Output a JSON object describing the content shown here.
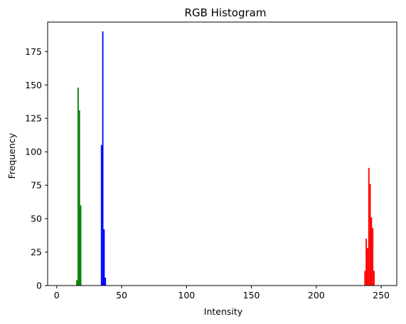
{
  "chart_data": {
    "type": "bar",
    "title": "RGB Histogram",
    "xlabel": "Intensity",
    "ylabel": "Frequency",
    "xlim": [
      -7,
      262
    ],
    "ylim": [
      0,
      197
    ],
    "xticks": [
      0,
      50,
      100,
      150,
      200,
      250
    ],
    "yticks": [
      0,
      25,
      50,
      75,
      100,
      125,
      150,
      175
    ],
    "grid": false,
    "bin_width": 1,
    "series": [
      {
        "name": "Red",
        "color": "#ff0000",
        "bins": [
          {
            "x": 237,
            "count": 11
          },
          {
            "x": 238,
            "count": 35
          },
          {
            "x": 239,
            "count": 28
          },
          {
            "x": 240,
            "count": 88
          },
          {
            "x": 241,
            "count": 76
          },
          {
            "x": 242,
            "count": 51
          },
          {
            "x": 243,
            "count": 43
          },
          {
            "x": 244,
            "count": 11
          }
        ]
      },
      {
        "name": "Green",
        "color": "#008000",
        "bins": [
          {
            "x": 15,
            "count": 4
          },
          {
            "x": 16,
            "count": 148
          },
          {
            "x": 17,
            "count": 131
          },
          {
            "x": 18,
            "count": 60
          }
        ]
      },
      {
        "name": "Blue",
        "color": "#0000ff",
        "bins": [
          {
            "x": 34,
            "count": 105
          },
          {
            "x": 35,
            "count": 190
          },
          {
            "x": 36,
            "count": 42
          },
          {
            "x": 37,
            "count": 6
          }
        ]
      }
    ]
  }
}
